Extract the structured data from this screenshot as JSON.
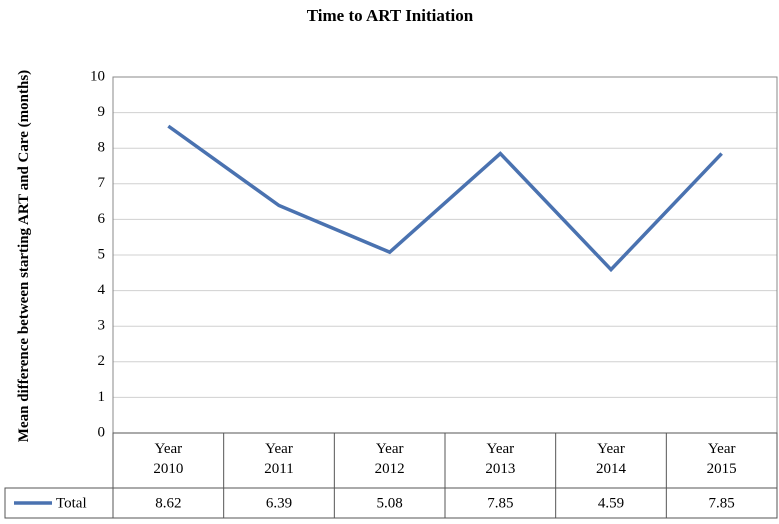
{
  "chart_data": {
    "type": "line",
    "title": "Time to ART Initiation",
    "y_label": "Mean difference between starting ART and Care (months)",
    "categories": [
      "Year 2010",
      "Year 2011",
      "Year 2012",
      "Year 2013",
      "Year 2014",
      "Year 2015"
    ],
    "series": [
      {
        "name": "Total",
        "color": "#4a72b0",
        "values": [
          8.62,
          6.39,
          5.08,
          7.85,
          4.59,
          7.85
        ]
      }
    ],
    "ylim": [
      0,
      10
    ],
    "yticks": [
      0,
      1,
      2,
      3,
      4,
      5,
      6,
      7,
      8,
      9,
      10
    ],
    "grid": true,
    "data_table": true
  }
}
